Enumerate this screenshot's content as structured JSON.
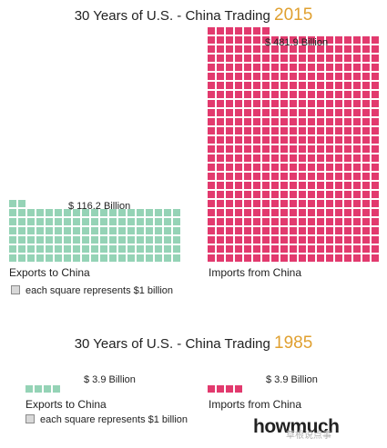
{
  "colors": {
    "exports": "#95d3b6",
    "imports": "#e23a6e",
    "year_accent": "#e0a030"
  },
  "panel_2015": {
    "title": "30 Years of U.S. - China Trading ",
    "year": "2015",
    "exports_value_label": "$ 116.2 Billion",
    "imports_value_label": "$ 481.9 Billion",
    "exports_caption": "Exports to China",
    "imports_caption": "Imports from China",
    "note": "each square represents $1 billion"
  },
  "panel_1985": {
    "title": "30 Years of U.S. - China Trading ",
    "year": "1985",
    "exports_value_label": "$ 3.9 Billion",
    "imports_value_label": "$ 3.9 Billion",
    "exports_caption": "Exports to China",
    "imports_caption": "Imports from China",
    "note": "each square represents $1 billion"
  },
  "logo": "howmuch",
  "watermark": "草根说点事",
  "chart_data": [
    {
      "type": "bar",
      "title": "30 Years of U.S. - China Trading 2015",
      "categories": [
        "Exports to China",
        "Imports from China"
      ],
      "values": [
        116.2,
        481.9
      ],
      "unit": "each square represents $1 billion"
    },
    {
      "type": "bar",
      "title": "30 Years of U.S. - China Trading 1985",
      "categories": [
        "Exports to China",
        "Imports from China"
      ],
      "values": [
        3.9,
        3.9
      ],
      "unit": "each square represents $1 billion"
    }
  ]
}
